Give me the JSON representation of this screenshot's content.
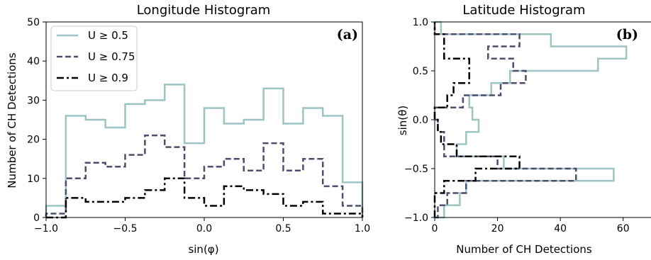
{
  "chart_data": [
    {
      "type": "histogram",
      "title": "Longitude Histogram",
      "xlabel": "sin(φ)",
      "ylabel": "Number of CH Detections",
      "xlim": [
        -1.0,
        1.0
      ],
      "ylim": [
        0,
        50
      ],
      "xticks": [
        "−1.0",
        "−0.5",
        "0.0",
        "0.5",
        "1.0"
      ],
      "xtick_values": [
        -1.0,
        -0.5,
        0.0,
        0.5,
        1.0
      ],
      "yticks": [
        "0",
        "10",
        "20",
        "30",
        "40",
        "50"
      ],
      "ytick_values": [
        0,
        10,
        20,
        30,
        40,
        50
      ],
      "panel_label": "(a)",
      "legend_position": "top-left",
      "bin_edges": [
        -1.0,
        -0.875,
        -0.75,
        -0.625,
        -0.5,
        -0.375,
        -0.25,
        -0.125,
        0.0,
        0.125,
        0.25,
        0.375,
        0.5,
        0.625,
        0.75,
        0.875,
        1.0
      ],
      "series": [
        {
          "name": "U ≥ 0.5",
          "color": "#9cc4c2",
          "dash": "solid",
          "values": [
            3,
            26,
            25,
            23,
            29,
            30,
            34,
            19,
            28,
            24,
            25,
            33,
            24,
            28,
            26,
            9
          ]
        },
        {
          "name": "U ≥ 0.75",
          "color": "#4d4d6e",
          "dash": "dashed",
          "values": [
            1,
            10,
            14,
            13,
            16,
            21,
            18,
            10,
            13,
            15,
            12,
            19,
            12,
            15,
            8,
            3
          ]
        },
        {
          "name": "U ≥ 0.9",
          "color": "#000000",
          "dash": "dashdot",
          "values": [
            0,
            5,
            4,
            4,
            5,
            7,
            10,
            5,
            3,
            8,
            7,
            6,
            3,
            4,
            1,
            1
          ]
        }
      ]
    },
    {
      "type": "histogram",
      "orientation": "horizontal",
      "title": "Latitude Histogram",
      "xlabel": "Number of CH Detections",
      "ylabel": "sin(θ)",
      "xlim": [
        0,
        70
      ],
      "ylim": [
        -1.0,
        1.0
      ],
      "xticks": [
        "0",
        "20",
        "40",
        "60"
      ],
      "xtick_values": [
        0,
        20,
        40,
        60
      ],
      "yticks": [
        "−1.0",
        "−0.5",
        "0.0",
        "0.5",
        "1.0"
      ],
      "ytick_values": [
        -1.0,
        -0.5,
        0.0,
        0.5,
        1.0
      ],
      "panel_label": "(b)",
      "bin_edges": [
        -1.0,
        -0.875,
        -0.75,
        -0.625,
        -0.5,
        -0.375,
        -0.25,
        -0.125,
        0.0,
        0.125,
        0.25,
        0.375,
        0.5,
        0.625,
        0.75,
        0.875,
        1.0
      ],
      "series": [
        {
          "name": "U ≥ 0.5",
          "color": "#9cc4c2",
          "dash": "solid",
          "values": [
            3,
            8,
            10,
            57,
            22,
            7,
            10,
            14,
            12,
            11,
            18,
            24,
            52,
            61,
            37,
            2
          ]
        },
        {
          "name": "U ≥ 0.75",
          "color": "#4d4d6e",
          "dash": "dashed",
          "values": [
            1,
            4,
            10,
            45,
            20,
            3,
            3,
            1,
            0,
            9,
            21,
            29,
            25,
            17,
            27,
            0
          ]
        },
        {
          "name": "U ≥ 0.9",
          "color": "#000000",
          "dash": "dashdot",
          "values": [
            0,
            0,
            3,
            13,
            27,
            7,
            2,
            1,
            0,
            4,
            6,
            11,
            11,
            3,
            3,
            0
          ]
        }
      ]
    }
  ]
}
